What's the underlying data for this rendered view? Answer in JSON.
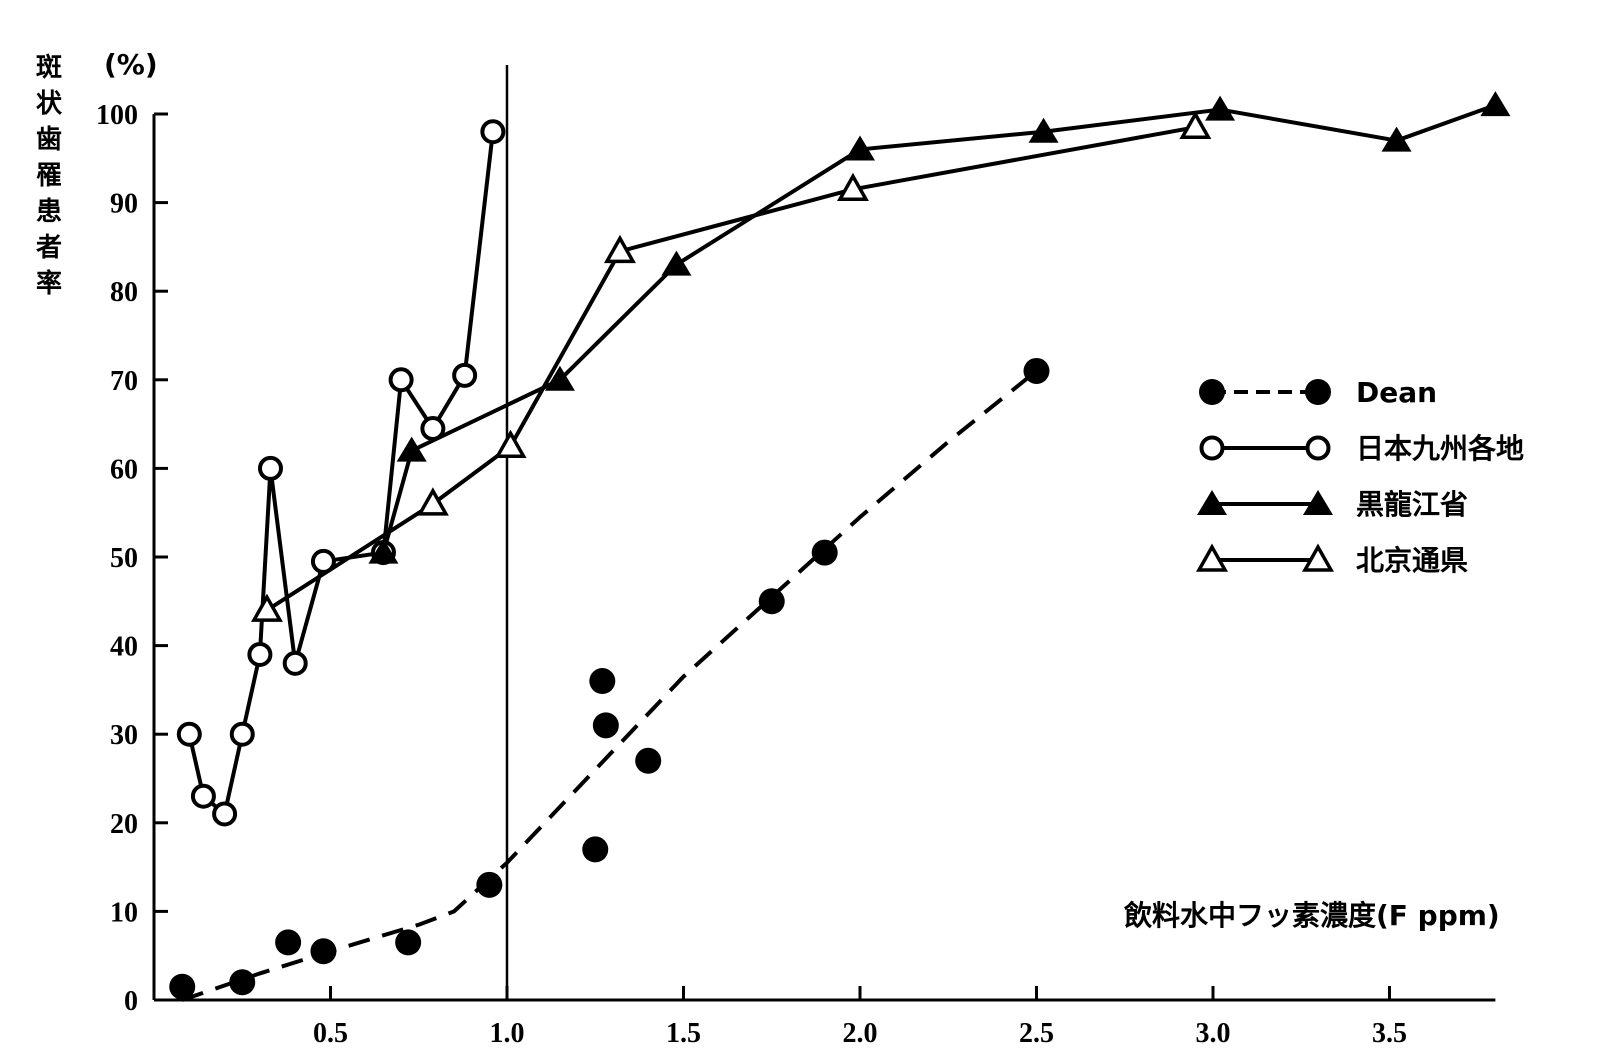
{
  "chart_data": {
    "type": "line",
    "ylabel": "斑状歯罹患者率",
    "yunit": "(%)",
    "xlabel": "飲料水中フッ素濃度(F ppm)",
    "xlim": [
      0.0,
      3.8
    ],
    "ylim": [
      0,
      100
    ],
    "xticks": [
      0.5,
      1.0,
      1.5,
      2.0,
      2.5,
      3.0,
      3.5
    ],
    "xtick_labels": [
      "0.5",
      "1.0",
      "1.5",
      "2.0",
      "2.5",
      "3.0",
      "3.5"
    ],
    "yticks": [
      0,
      10,
      20,
      30,
      40,
      50,
      60,
      70,
      80,
      90,
      100
    ],
    "ytick_labels": [
      "0",
      "10",
      "20",
      "30",
      "40",
      "50",
      "60",
      "70",
      "80",
      "90",
      "100"
    ],
    "reference_line_x": 1.0,
    "series": [
      {
        "name": "Dean",
        "marker": "filled-circle",
        "line": "dashed",
        "points": [
          [
            0.08,
            1.5
          ],
          [
            0.25,
            2
          ],
          [
            0.38,
            6.5
          ],
          [
            0.48,
            5.5
          ],
          [
            0.72,
            6.5
          ],
          [
            0.95,
            13
          ],
          [
            1.27,
            36
          ],
          [
            1.28,
            31
          ],
          [
            1.4,
            27
          ],
          [
            1.25,
            17
          ],
          [
            1.75,
            45
          ],
          [
            1.9,
            50.5
          ],
          [
            2.5,
            71
          ]
        ],
        "trend_line": [
          [
            0.08,
            0
          ],
          [
            0.3,
            3
          ],
          [
            0.5,
            5.5
          ],
          [
            0.75,
            8.5
          ],
          [
            0.85,
            10
          ],
          [
            1.0,
            15.5
          ],
          [
            1.25,
            26
          ],
          [
            1.5,
            36.5
          ],
          [
            1.75,
            45.5
          ],
          [
            2.0,
            54.5
          ],
          [
            2.25,
            63
          ],
          [
            2.5,
            71
          ]
        ]
      },
      {
        "name": "日本九州各地",
        "marker": "open-circle",
        "line": "solid",
        "points": [
          [
            0.1,
            30
          ],
          [
            0.14,
            23
          ],
          [
            0.2,
            21
          ],
          [
            0.25,
            30
          ],
          [
            0.3,
            39
          ],
          [
            0.33,
            60
          ],
          [
            0.4,
            38
          ],
          [
            0.48,
            49.5
          ],
          [
            0.65,
            50.5
          ],
          [
            0.7,
            70
          ],
          [
            0.79,
            64.5
          ],
          [
            0.88,
            70.5
          ],
          [
            0.96,
            98
          ]
        ]
      },
      {
        "name": "黒龍江省",
        "marker": "filled-triangle",
        "line": "solid",
        "points": [
          [
            0.65,
            50.5
          ],
          [
            0.73,
            62
          ],
          [
            1.15,
            70
          ],
          [
            1.48,
            83
          ],
          [
            2.0,
            96
          ],
          [
            2.52,
            98
          ],
          [
            3.02,
            100.5
          ],
          [
            3.52,
            97
          ],
          [
            3.8,
            101
          ]
        ]
      },
      {
        "name": "北京通県",
        "marker": "open-triangle",
        "line": "solid",
        "points": [
          [
            0.32,
            44
          ],
          [
            0.79,
            56
          ],
          [
            1.01,
            62.5
          ],
          [
            1.32,
            84.5
          ],
          [
            1.98,
            91.5
          ],
          [
            2.95,
            98.5
          ]
        ]
      }
    ],
    "legend": [
      "Dean",
      "日本九州各地",
      "黒龍江省",
      "北京通県"
    ],
    "legend_position": "right"
  }
}
